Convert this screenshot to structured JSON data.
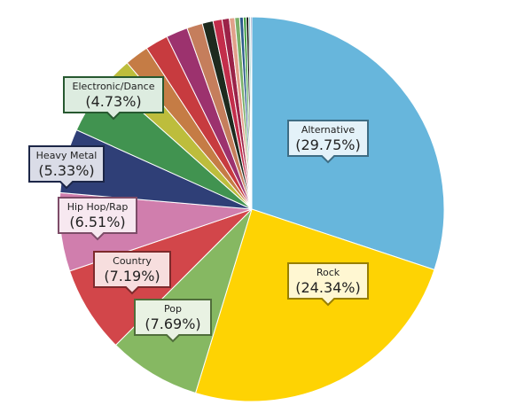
{
  "chart_data": {
    "type": "pie",
    "title": "",
    "slices": [
      {
        "label": "Alternative",
        "value": 29.75,
        "color": "#67b6dc",
        "callout": true
      },
      {
        "label": "Rock",
        "value": 24.34,
        "color": "#fed303",
        "callout": true
      },
      {
        "label": "Pop",
        "value": 7.69,
        "color": "#86b862",
        "callout": true
      },
      {
        "label": "Country",
        "value": 7.19,
        "color": "#d2464a",
        "callout": true
      },
      {
        "label": "Hip Hop/Rap",
        "value": 6.51,
        "color": "#d07ead",
        "callout": true
      },
      {
        "label": "Heavy Metal",
        "value": 5.33,
        "color": "#2f3f77",
        "callout": true
      },
      {
        "label": "Electronic/Dance",
        "value": 4.73,
        "color": "#419350",
        "callout": true
      },
      {
        "value": 2.2,
        "color": "#bdbd3c"
      },
      {
        "value": 2.0,
        "color": "#c57c45"
      },
      {
        "value": 1.9,
        "color": "#c73b3f"
      },
      {
        "value": 1.8,
        "color": "#9c326e"
      },
      {
        "value": 1.3,
        "color": "#c57e5c"
      },
      {
        "value": 0.9,
        "color": "#1e2a1e"
      },
      {
        "value": 0.75,
        "color": "#c32d4b"
      },
      {
        "value": 0.6,
        "color": "#9b2348"
      },
      {
        "value": 0.45,
        "color": "#e1a08a"
      },
      {
        "value": 0.4,
        "color": "#7ab06a"
      },
      {
        "value": 0.3,
        "color": "#2c5a8a"
      },
      {
        "value": 0.25,
        "color": "#48a24a"
      },
      {
        "value": 0.2,
        "color": "#000000"
      },
      {
        "value": 0.15,
        "color": "#7fbfbf"
      },
      {
        "value": 0.1,
        "color": "#5a5a9a"
      }
    ],
    "legend": "none"
  }
}
